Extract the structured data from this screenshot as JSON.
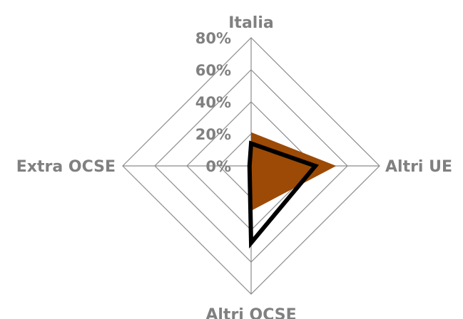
{
  "chart_data": {
    "type": "radar",
    "categories": [
      "Italia",
      "Altri UE",
      "Altri OCSE",
      "Extra OCSE"
    ],
    "ylim": [
      0,
      80
    ],
    "ticks": [
      "0%",
      "20%",
      "40%",
      "60%",
      "80%"
    ],
    "grid": true,
    "series": [
      {
        "values": [
          21,
          53,
          28,
          0
        ],
        "color": "#9c4a05",
        "style": "filled-area"
      },
      {
        "values": [
          14,
          40,
          48,
          1
        ],
        "color": "#000000",
        "style": "line"
      }
    ]
  }
}
